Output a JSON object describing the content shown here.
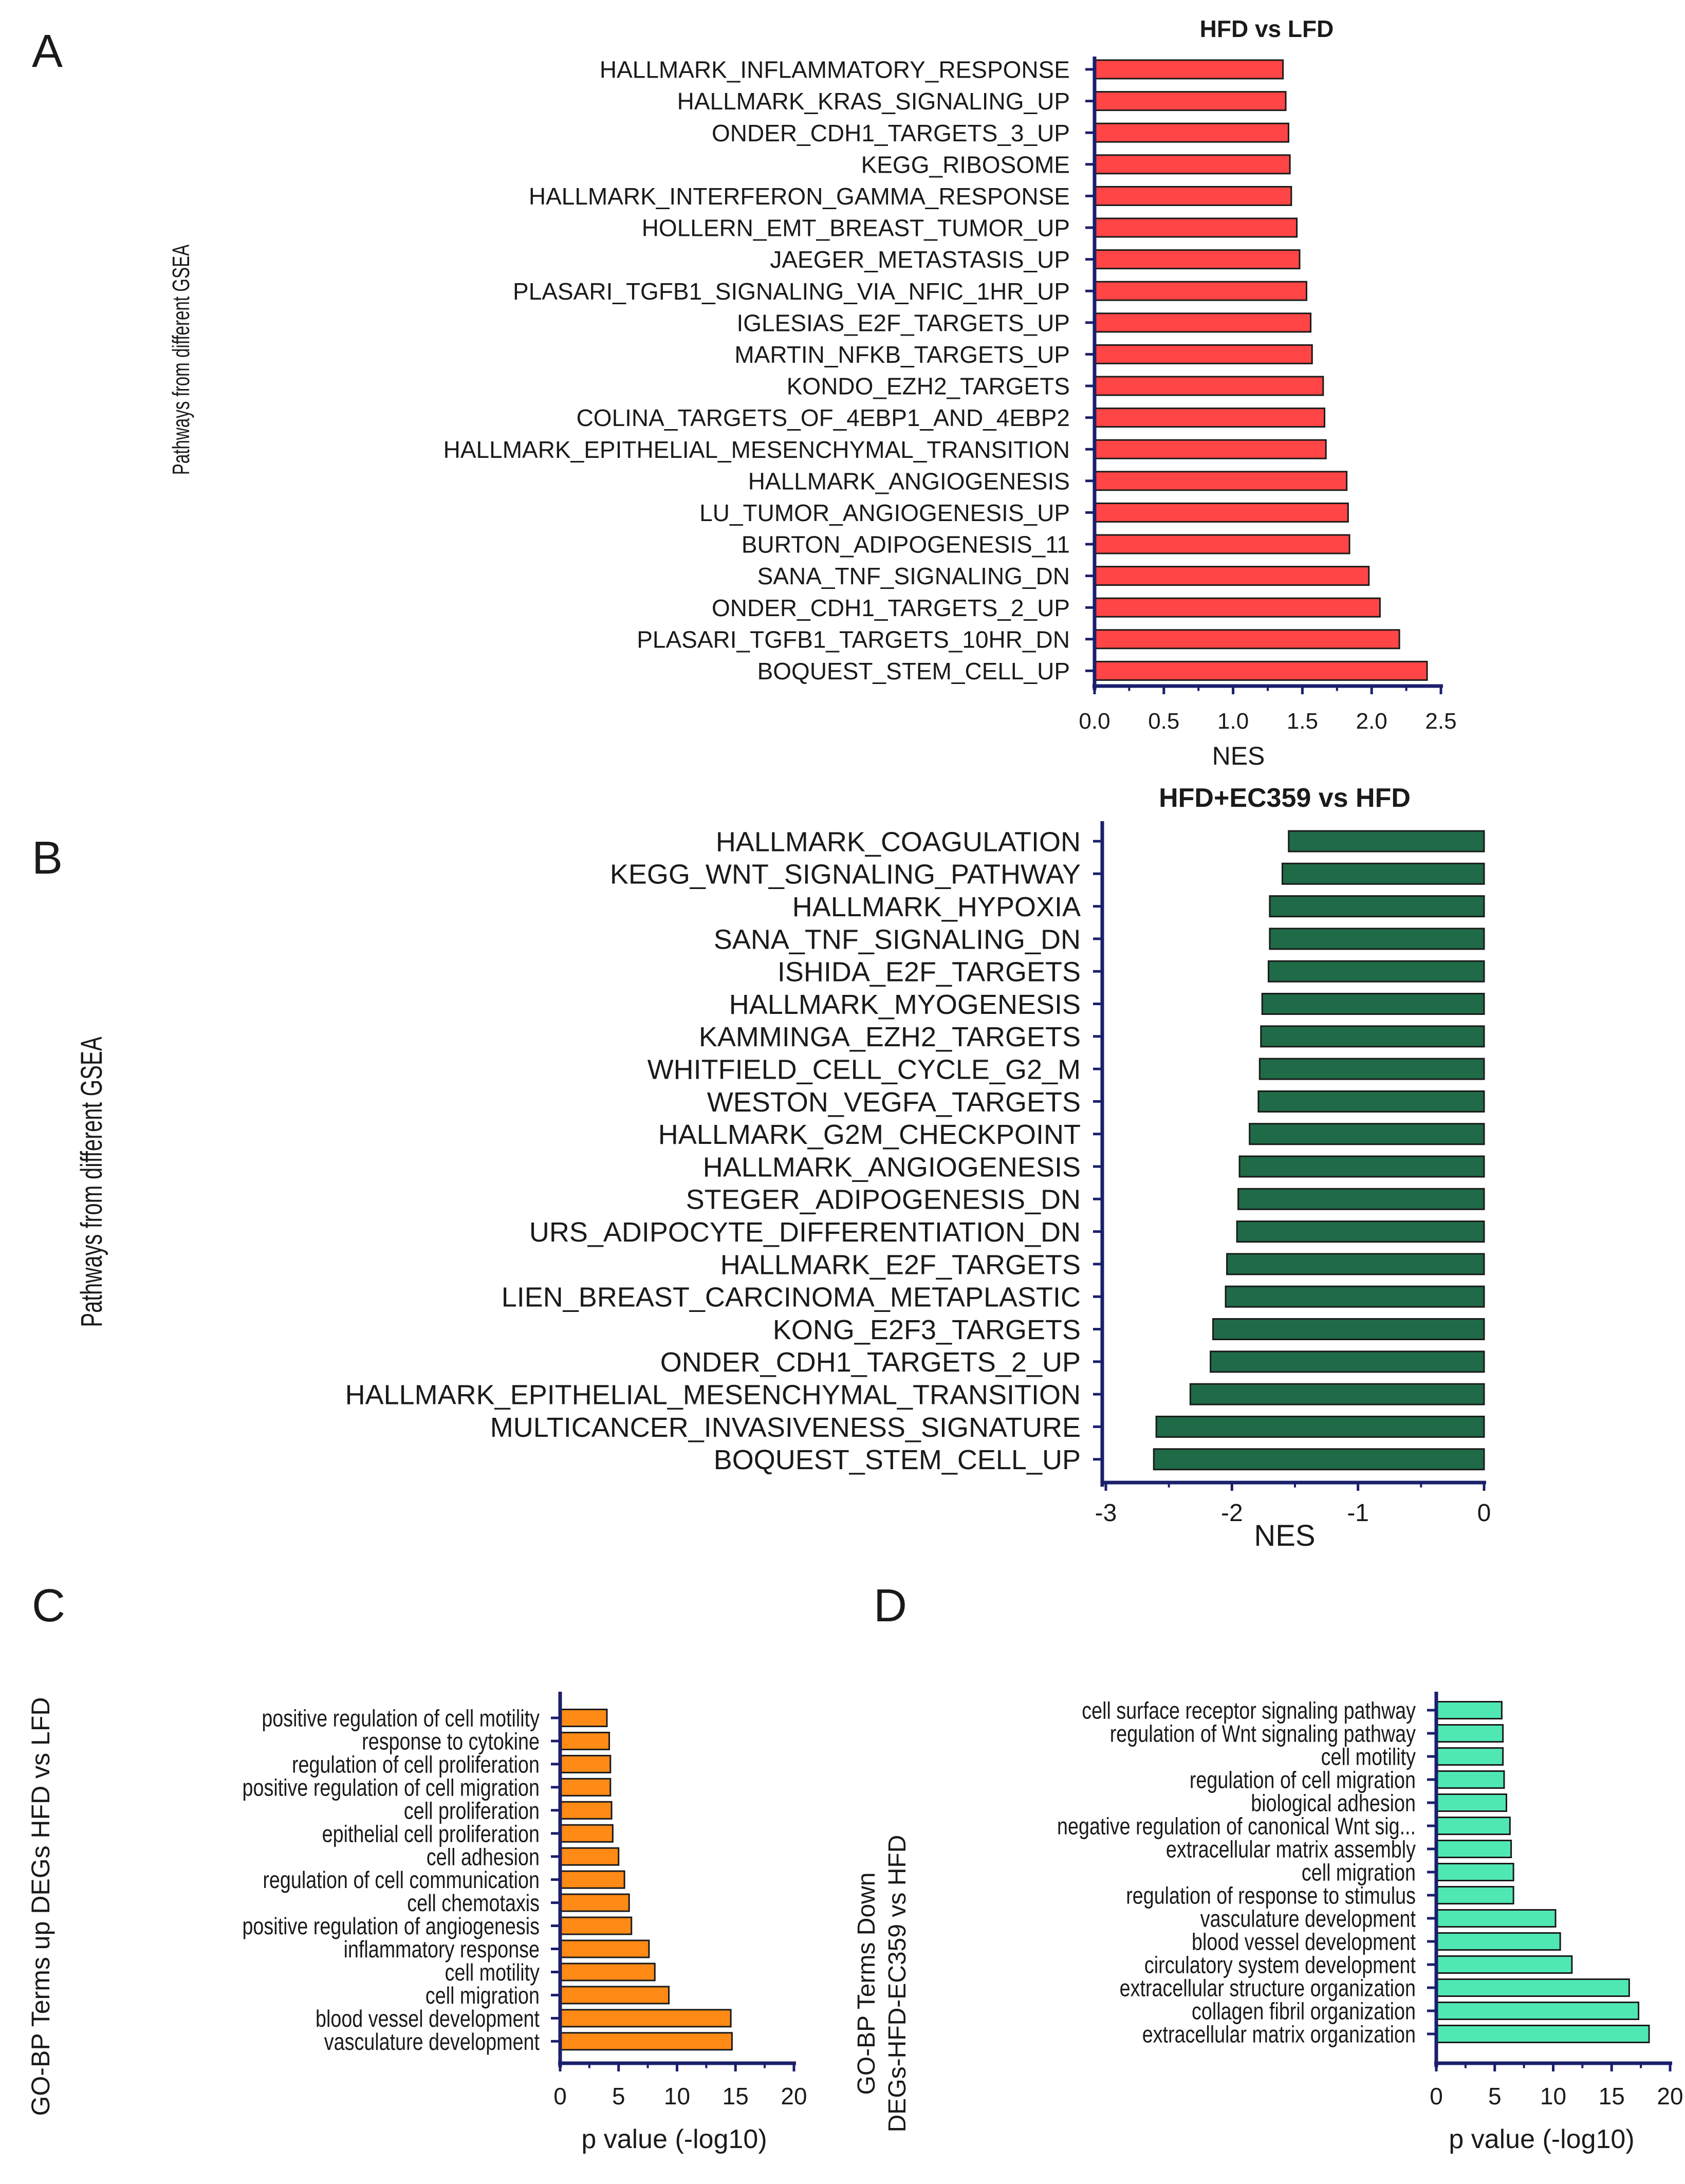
{
  "colors": {
    "axis": "#1b1f6b",
    "bar_A": "#ff4545",
    "bar_B": "#1f6b47",
    "bar_C": "#ff8a16",
    "bar_D": "#4fe8b2",
    "text": "#1a1a1a"
  },
  "chart_data": [
    {
      "panel": "A",
      "type": "bar",
      "orientation": "horizontal",
      "title": "HFD vs LFD",
      "xlabel": "NES",
      "ylabel": "Pathways from different GSEA",
      "xlim": [
        0,
        2.5
      ],
      "xticks": [
        "0.0",
        "0.5",
        "1.0",
        "1.5",
        "2.0",
        "2.5"
      ],
      "categories": [
        "HALLMARK_INFLAMMATORY_RESPONSE",
        "HALLMARK_KRAS_SIGNALING_UP",
        "ONDER_CDH1_TARGETS_3_UP",
        "KEGG_RIBOSOME",
        "HALLMARK_INTERFERON_GAMMA_RESPONSE",
        "HOLLERN_EMT_BREAST_TUMOR_UP",
        "JAEGER_METASTASIS_UP",
        "PLASARI_TGFB1_SIGNALING_VIA_NFIC_1HR_UP",
        "IGLESIAS_E2F_TARGETS_UP",
        "MARTIN_NFKB_TARGETS_UP",
        "KONDO_EZH2_TARGETS",
        "COLINA_TARGETS_OF_4EBP1_AND_4EBP2",
        "HALLMARK_EPITHELIAL_MESENCHYMAL_TRANSITION",
        "HALLMARK_ANGIOGENESIS",
        "LU_TUMOR_ANGIOGENESIS_UP",
        "BURTON_ADIPOGENESIS_11",
        "SANA_TNF_SIGNALING_DN",
        "ONDER_CDH1_TARGETS_2_UP",
        "PLASARI_TGFB1_TARGETS_10HR_DN",
        "BOQUEST_STEM_CELL_UP"
      ],
      "values": [
        1.36,
        1.38,
        1.4,
        1.41,
        1.42,
        1.46,
        1.48,
        1.53,
        1.56,
        1.57,
        1.65,
        1.66,
        1.67,
        1.82,
        1.83,
        1.84,
        1.98,
        2.06,
        2.2,
        2.4
      ]
    },
    {
      "panel": "B",
      "type": "bar",
      "orientation": "horizontal",
      "title": "HFD+EC359 vs HFD",
      "xlabel": "NES",
      "ylabel": "Pathways from different GSEA",
      "xlim": [
        -3,
        0
      ],
      "xticks": [
        "-3",
        "-2",
        "-1",
        "0"
      ],
      "categories": [
        "HALLMARK_COAGULATION",
        "KEGG_WNT_SIGNALING_PATHWAY",
        "HALLMARK_HYPOXIA",
        "SANA_TNF_SIGNALING_DN",
        "ISHIDA_E2F_TARGETS",
        "HALLMARK_MYOGENESIS",
        "KAMMINGA_EZH2_TARGETS",
        "WHITFIELD_CELL_CYCLE_G2_M",
        "WESTON_VEGFA_TARGETS",
        "HALLMARK_G2M_CHECKPOINT",
        "HALLMARK_ANGIOGENESIS",
        "STEGER_ADIPOGENESIS_DN",
        "URS_ADIPOCYTE_DIFFERENTIATION_DN",
        "HALLMARK_E2F_TARGETS",
        "LIEN_BREAST_CARCINOMA_METAPLASTIC",
        "KONG_E2F3_TARGETS",
        "ONDER_CDH1_TARGETS_2_UP",
        "HALLMARK_EPITHELIAL_MESENCHYMAL_TRANSITION",
        "MULTICANCER_INVASIVENESS_SIGNATURE",
        "BOQUEST_STEM_CELL_UP"
      ],
      "values": [
        -1.55,
        -1.6,
        -1.7,
        -1.7,
        -1.71,
        -1.76,
        -1.77,
        -1.78,
        -1.79,
        -1.86,
        -1.94,
        -1.95,
        -1.96,
        -2.04,
        -2.05,
        -2.15,
        -2.17,
        -2.33,
        -2.6,
        -2.62
      ]
    },
    {
      "panel": "C",
      "type": "bar",
      "orientation": "horizontal",
      "title": "",
      "xlabel": "p value (-log10)",
      "ylabel": "GO-BP Terms up DEGs HFD vs LFD",
      "xlim": [
        0,
        20
      ],
      "xticks": [
        "0",
        "5",
        "10",
        "15",
        "20"
      ],
      "categories": [
        "positive regulation of cell motility",
        "response to cytokine",
        "regulation of cell proliferation",
        "positive regulation of cell migration",
        "cell proliferation",
        "epithelial cell proliferation",
        "cell adhesion",
        "regulation of cell communication",
        "cell chemotaxis",
        "positive regulation of angiogenesis",
        "inflammatory response",
        "cell motility",
        "cell migration",
        "blood vessel development",
        "vasculature development"
      ],
      "values": [
        4.0,
        4.2,
        4.3,
        4.3,
        4.4,
        4.5,
        5.0,
        5.5,
        5.9,
        6.1,
        7.6,
        8.1,
        9.3,
        14.6,
        14.7
      ]
    },
    {
      "panel": "D",
      "type": "bar",
      "orientation": "horizontal",
      "title": "",
      "xlabel": "p value (-log10)",
      "ylabel": "GO-BP Terms Down DEGs-HFD-EC359 vs HFD",
      "xlim": [
        0,
        20
      ],
      "xticks": [
        "0",
        "5",
        "10",
        "15",
        "20"
      ],
      "categories": [
        "cell surface receptor signaling pathway",
        "regulation of Wnt signaling pathway",
        "cell motility",
        "regulation of cell migration",
        "biological adhesion",
        "negative regulation of canonical Wnt sig...",
        "extracellular matrix assembly",
        "cell migration",
        "regulation of response to stimulus",
        "vasculature development",
        "blood vessel development",
        "circulatory system development",
        "extracellular structure organization",
        "collagen fibril organization",
        "extracellular matrix organization"
      ],
      "values": [
        5.6,
        5.7,
        5.7,
        5.8,
        6.0,
        6.3,
        6.4,
        6.6,
        6.6,
        10.2,
        10.6,
        11.6,
        16.5,
        17.3,
        18.2
      ]
    }
  ],
  "panel_letters": [
    "A",
    "B",
    "C",
    "D"
  ]
}
